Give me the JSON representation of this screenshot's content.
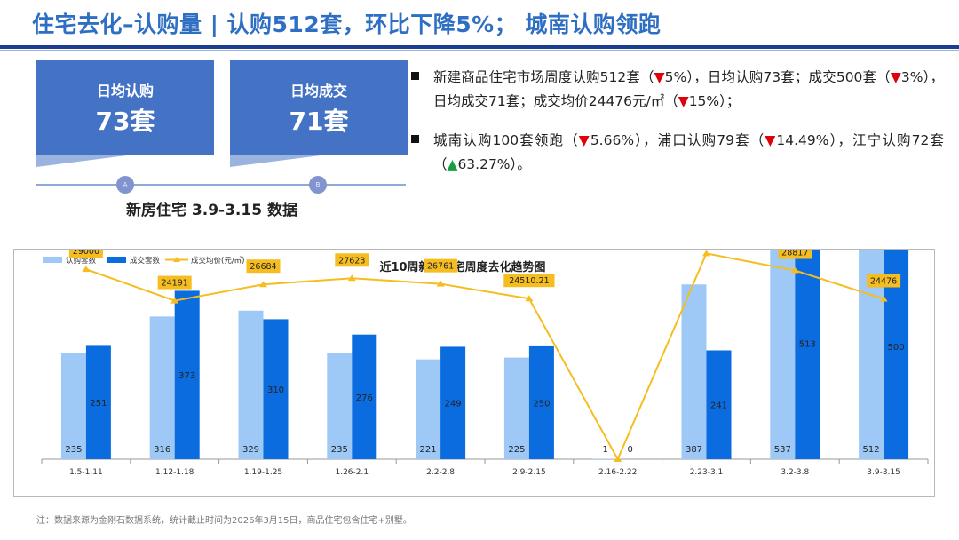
{
  "page_title": "住宅去化–认购量 | 认购512套，环比下降5%； 城南认购领跑",
  "cards": [
    {
      "label": "日均认购",
      "value": "73套",
      "marker": "A"
    },
    {
      "label": "日均成交",
      "value": "71套",
      "marker": "B"
    }
  ],
  "data_caption": "新房住宅 3.9-3.15 数据",
  "bullets": [
    {
      "p1": "新建商品住宅市场周度认购512套（",
      "a1": "▼",
      "v1": "5%",
      "p2": "），日均认购73套；成交500套（",
      "a2": "▼",
      "v2": "3%",
      "p3": "），日均成交71套；成交均价24476元/㎡（",
      "a3": "▼",
      "v3": "15%",
      "p4": "）；"
    },
    {
      "p1": "城南认购100套领跑（",
      "a1": "▼",
      "v1": "5.66%",
      "p2": "），浦口认购79套（",
      "a2": "▼",
      "v2": "14.49%",
      "p3": "），江宁认购72套（",
      "a3": "▲",
      "v3": "63.27%",
      "p4": "）。"
    }
  ],
  "chart_data": {
    "type": "bar",
    "title": "近10周新房住宅周度去化趋势图",
    "categories": [
      "1.5-1.11",
      "1.12-1.18",
      "1.19-1.25",
      "1.26-2.1",
      "2.2-2.8",
      "2.9-2.15",
      "2.16-2.22",
      "2.23-3.1",
      "3.2-3.8",
      "3.9-3.15"
    ],
    "series": [
      {
        "name": "认购套数",
        "kind": "bar",
        "color": "#9ec8f5",
        "values": [
          235,
          316,
          329,
          235,
          221,
          225,
          1,
          387,
          537,
          512
        ]
      },
      {
        "name": "成交套数",
        "kind": "bar",
        "color": "#0b6ce0",
        "values": [
          251,
          373,
          310,
          276,
          249,
          250,
          0,
          241,
          513,
          500
        ]
      },
      {
        "name": "成交均价(元/㎡)",
        "kind": "line",
        "color": "#f5bd1f",
        "values": [
          29000,
          24191,
          26684,
          27623,
          26761,
          24510.21,
          0,
          31404,
          28817,
          24476
        ]
      }
    ],
    "bar_ylim": [
      0,
      600
    ],
    "line_ylim": [
      0,
      40000
    ],
    "legend_position": "top-left",
    "grid": false
  },
  "footnote": "注：数据来源为金刚石数据系统，统计截止时间为2026年3月15日，商品住宅包含住宅+别墅。"
}
